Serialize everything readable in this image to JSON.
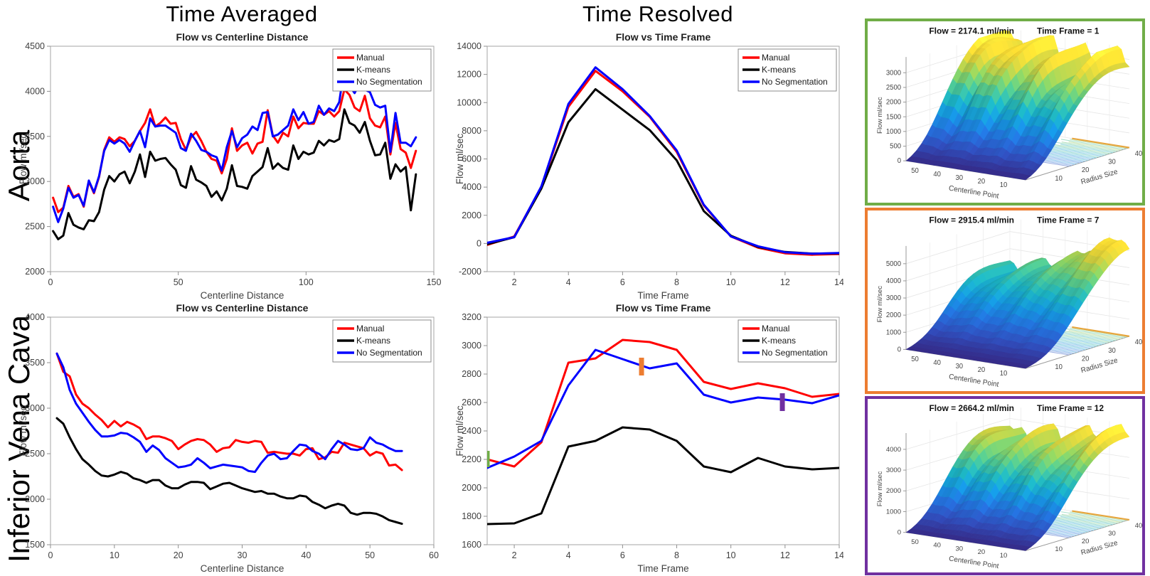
{
  "figure": {
    "background": "#ffffff"
  },
  "headers": {
    "left": "Time Averaged",
    "middle": "Time Resolved"
  },
  "row_labels": {
    "top": "Aorta",
    "bottom": "Inferior Vena Cava"
  },
  "colors": {
    "manual": "#ff0000",
    "kmeans": "#000000",
    "noseg": "#0000ff",
    "green_box": "#70AD47",
    "orange_box": "#ED7D31",
    "purple_box": "#7030A0",
    "axis_frame": "#a6a6a6",
    "tick_text": "#404040",
    "title_text": "#1f1f1f"
  },
  "legend_items": [
    {
      "label": "Manual",
      "color": "#ff0000"
    },
    {
      "label": "K-means",
      "color": "#000000"
    },
    {
      "label": "No Segmentation",
      "color": "#0000ff"
    }
  ],
  "chart_data": [
    {
      "id": "aorta_avg",
      "type": "line",
      "title": "Flow vs Centerline Distance",
      "xlabel": "Centerline Distance",
      "ylabel": "Flow ml/sec",
      "xlim": [
        0,
        150
      ],
      "ylim": [
        2000,
        4500
      ],
      "xticks": [
        0,
        50,
        100,
        150
      ],
      "yticks": [
        2000,
        2500,
        3000,
        3500,
        4000,
        4500
      ],
      "legend_position": "northeast",
      "grid": false,
      "x": [
        1,
        3,
        5,
        7,
        9,
        11,
        13,
        15,
        17,
        19,
        21,
        23,
        25,
        27,
        29,
        31,
        33,
        35,
        37,
        39,
        41,
        43,
        45,
        47,
        49,
        51,
        53,
        55,
        57,
        59,
        61,
        63,
        65,
        67,
        69,
        71,
        73,
        75,
        77,
        79,
        81,
        83,
        85,
        87,
        89,
        91,
        93,
        95,
        97,
        99,
        101,
        103,
        105,
        107,
        109,
        111,
        113,
        115,
        117,
        119,
        121,
        123,
        125,
        127,
        129,
        131,
        133,
        135,
        137,
        139,
        141,
        143
      ],
      "series": [
        {
          "name": "Manual",
          "color": "#ff0000",
          "y": [
            2820,
            2660,
            2710,
            2950,
            2830,
            2860,
            2720,
            3000,
            2870,
            3050,
            3350,
            3490,
            3440,
            3490,
            3470,
            3390,
            3450,
            3560,
            3650,
            3800,
            3610,
            3650,
            3710,
            3640,
            3650,
            3470,
            3350,
            3490,
            3550,
            3450,
            3330,
            3250,
            3230,
            3090,
            3250,
            3590,
            3340,
            3400,
            3430,
            3310,
            3420,
            3440,
            3790,
            3510,
            3430,
            3540,
            3500,
            3720,
            3590,
            3650,
            3640,
            3640,
            3780,
            3740,
            3780,
            3720,
            3780,
            4020,
            3960,
            3820,
            3780,
            3950,
            3700,
            3620,
            3600,
            3720,
            3300,
            3650,
            3360,
            3320,
            3150,
            3340
          ]
        },
        {
          "name": "K-means",
          "color": "#000000",
          "y": [
            2450,
            2360,
            2400,
            2650,
            2520,
            2490,
            2470,
            2570,
            2560,
            2660,
            2910,
            3060,
            3000,
            3080,
            3110,
            2980,
            3110,
            3300,
            3050,
            3330,
            3230,
            3250,
            3260,
            3190,
            3130,
            2960,
            2930,
            3170,
            3020,
            2990,
            2950,
            2830,
            2890,
            2790,
            2920,
            3180,
            2950,
            2940,
            2920,
            3060,
            3110,
            3160,
            3370,
            3140,
            3200,
            3150,
            3130,
            3400,
            3250,
            3330,
            3300,
            3320,
            3450,
            3400,
            3460,
            3440,
            3470,
            3800,
            3650,
            3620,
            3540,
            3660,
            3450,
            3290,
            3300,
            3430,
            3030,
            3190,
            3110,
            3160,
            2680,
            3080
          ]
        },
        {
          "name": "No Segmentation",
          "color": "#0000ff",
          "y": [
            2720,
            2550,
            2700,
            2930,
            2820,
            2850,
            2730,
            3010,
            2880,
            3060,
            3340,
            3460,
            3420,
            3460,
            3420,
            3330,
            3450,
            3560,
            3380,
            3700,
            3610,
            3620,
            3620,
            3580,
            3540,
            3370,
            3340,
            3530,
            3450,
            3350,
            3330,
            3290,
            3270,
            3120,
            3380,
            3560,
            3380,
            3480,
            3520,
            3610,
            3570,
            3760,
            3770,
            3500,
            3520,
            3570,
            3620,
            3800,
            3680,
            3770,
            3640,
            3660,
            3840,
            3740,
            3810,
            3780,
            3880,
            4270,
            4060,
            3980,
            4090,
            4020,
            3990,
            3850,
            3820,
            3840,
            3330,
            3760,
            3430,
            3430,
            3390,
            3490
          ]
        }
      ]
    },
    {
      "id": "aorta_time",
      "type": "line",
      "title": "Flow vs Time Frame",
      "xlabel": "Time Frame",
      "ylabel": "Flow ml/sec",
      "xlim": [
        1,
        14
      ],
      "ylim": [
        -2000,
        14000
      ],
      "xticks": [
        2,
        4,
        6,
        8,
        10,
        12,
        14
      ],
      "yticks": [
        -2000,
        0,
        2000,
        4000,
        6000,
        8000,
        10000,
        12000,
        14000
      ],
      "legend_position": "northeast",
      "grid": false,
      "x": [
        1,
        2,
        3,
        4,
        5,
        6,
        7,
        8,
        9,
        10,
        11,
        12,
        13,
        14
      ],
      "series": [
        {
          "name": "Manual",
          "color": "#ff0000",
          "y": [
            -100,
            500,
            4000,
            9700,
            12250,
            10800,
            9000,
            6500,
            2700,
            500,
            -300,
            -700,
            -800,
            -750
          ]
        },
        {
          "name": "K-means",
          "color": "#000000",
          "y": [
            -50,
            450,
            3900,
            8600,
            10950,
            9500,
            8050,
            5900,
            2300,
            550,
            -250,
            -600,
            -720,
            -700
          ]
        },
        {
          "name": "No Segmentation",
          "color": "#0000ff",
          "y": [
            50,
            450,
            4050,
            9900,
            12500,
            10950,
            9050,
            6600,
            2750,
            500,
            -200,
            -620,
            -730,
            -680
          ]
        }
      ]
    },
    {
      "id": "ivc_avg",
      "type": "line",
      "title": "Flow vs Centerline Distance",
      "xlabel": "Centerline Distance",
      "ylabel": "Flow ml/sec",
      "xlim": [
        0,
        60
      ],
      "ylim": [
        1500,
        4000
      ],
      "xticks": [
        0,
        10,
        20,
        30,
        40,
        50,
        60
      ],
      "yticks": [
        1500,
        2000,
        2500,
        3000,
        3500,
        4000
      ],
      "legend_position": "northeast",
      "grid": false,
      "x": [
        1,
        2,
        3,
        4,
        5,
        6,
        7,
        8,
        9,
        10,
        11,
        12,
        13,
        14,
        15,
        16,
        17,
        18,
        19,
        20,
        21,
        22,
        23,
        24,
        25,
        26,
        27,
        28,
        29,
        30,
        31,
        32,
        33,
        34,
        35,
        36,
        37,
        38,
        39,
        40,
        41,
        42,
        43,
        44,
        45,
        46,
        47,
        48,
        49,
        50,
        51,
        52,
        53,
        54,
        55
      ],
      "series": [
        {
          "name": "Manual",
          "color": "#ff0000",
          "y": [
            3600,
            3400,
            3350,
            3150,
            3050,
            3000,
            2930,
            2870,
            2790,
            2860,
            2800,
            2850,
            2820,
            2780,
            2660,
            2690,
            2690,
            2670,
            2640,
            2550,
            2600,
            2640,
            2660,
            2650,
            2600,
            2520,
            2560,
            2570,
            2650,
            2630,
            2620,
            2640,
            2630,
            2510,
            2520,
            2510,
            2500,
            2500,
            2480,
            2550,
            2560,
            2440,
            2460,
            2520,
            2510,
            2620,
            2600,
            2580,
            2560,
            2480,
            2520,
            2500,
            2370,
            2380,
            2320
          ]
        },
        {
          "name": "K-means",
          "color": "#000000",
          "y": [
            2890,
            2830,
            2680,
            2550,
            2440,
            2380,
            2310,
            2260,
            2250,
            2270,
            2300,
            2280,
            2230,
            2210,
            2180,
            2210,
            2210,
            2150,
            2120,
            2120,
            2160,
            2190,
            2190,
            2180,
            2110,
            2140,
            2170,
            2180,
            2150,
            2120,
            2100,
            2080,
            2090,
            2060,
            2060,
            2030,
            2010,
            2010,
            2040,
            2030,
            1970,
            1940,
            1900,
            1930,
            1950,
            1930,
            1850,
            1830,
            1850,
            1850,
            1840,
            1810,
            1770,
            1750,
            1730
          ]
        },
        {
          "name": "No Segmentation",
          "color": "#0000ff",
          "y": [
            3600,
            3450,
            3200,
            3050,
            2950,
            2850,
            2760,
            2690,
            2690,
            2700,
            2730,
            2720,
            2680,
            2630,
            2520,
            2590,
            2540,
            2450,
            2400,
            2350,
            2360,
            2380,
            2450,
            2400,
            2340,
            2360,
            2380,
            2370,
            2360,
            2350,
            2310,
            2300,
            2400,
            2480,
            2500,
            2440,
            2450,
            2530,
            2600,
            2590,
            2530,
            2500,
            2440,
            2550,
            2640,
            2600,
            2550,
            2540,
            2560,
            2680,
            2620,
            2600,
            2560,
            2530,
            2530
          ]
        }
      ]
    },
    {
      "id": "ivc_time",
      "type": "line",
      "title": "Flow vs Time Frame",
      "xlabel": "Time Frame",
      "ylabel": "Flow ml/sec",
      "xlim": [
        1,
        14
      ],
      "ylim": [
        1600,
        3200
      ],
      "xticks": [
        2,
        4,
        6,
        8,
        10,
        12,
        14
      ],
      "yticks": [
        1600,
        1800,
        2000,
        2200,
        2400,
        2600,
        2800,
        3000,
        3200
      ],
      "legend_position": "northeast",
      "grid": false,
      "x": [
        1,
        2,
        3,
        4,
        5,
        6,
        7,
        8,
        9,
        10,
        11,
        12,
        13,
        14
      ],
      "series": [
        {
          "name": "Manual",
          "color": "#ff0000",
          "y": [
            2200,
            2150,
            2320,
            2880,
            2910,
            3040,
            3025,
            2970,
            2745,
            2695,
            2735,
            2700,
            2640,
            2660
          ]
        },
        {
          "name": "K-means",
          "color": "#000000",
          "y": [
            1745,
            1750,
            1820,
            2290,
            2330,
            2425,
            2410,
            2330,
            2150,
            2110,
            2210,
            2150,
            2130,
            2140
          ]
        },
        {
          "name": "No Segmentation",
          "color": "#0000ff",
          "y": [
            2140,
            2220,
            2330,
            2720,
            2970,
            2905,
            2840,
            2875,
            2655,
            2600,
            2635,
            2620,
            2595,
            2650
          ]
        }
      ],
      "markers": [
        {
          "name": "time-frame-1-marker",
          "x": 1,
          "y1": 2145,
          "y2": 2260,
          "color": "#70AD47"
        },
        {
          "name": "time-frame-7-marker",
          "x": 6.7,
          "y1": 2790,
          "y2": 2915,
          "color": "#ED7D31"
        },
        {
          "name": "time-frame-12-marker",
          "x": 11.9,
          "y1": 2540,
          "y2": 2665,
          "color": "#7030A0"
        }
      ]
    },
    {
      "id": "surf1",
      "type": "surface3d",
      "border_color": "#70AD47",
      "title_flow": "Flow = 2174.1 ml/min",
      "title_frame": "Time Frame = 1",
      "zlabel": "Flow ml/sec",
      "xlabel3d": "Centerline Point",
      "ylabel3d": "Radius Size",
      "centerline_ticks": [
        50,
        40,
        30,
        20,
        10
      ],
      "radius_ticks": [
        10,
        20,
        30,
        40
      ],
      "zticks": [
        0,
        500,
        1000,
        1500,
        2000,
        2500,
        3000
      ],
      "zmax": 3400,
      "surface": {
        "base": 0.94,
        "v0": 0.33,
        "k": 8.0,
        "ridge": 0.2,
        "spike": 0.1,
        "back": 0.18,
        "ph": [
          1.3,
          3.1,
          0.7
        ]
      }
    },
    {
      "id": "surf2",
      "type": "surface3d",
      "border_color": "#ED7D31",
      "title_flow": "Flow = 2915.4 ml/min",
      "title_frame": "Time Frame = 7",
      "zlabel": "Flow ml/sec",
      "xlabel3d": "Centerline Point",
      "ylabel3d": "Radius Size",
      "centerline_ticks": [
        50,
        40,
        30,
        20,
        10
      ],
      "radius_ticks": [
        10,
        20,
        30,
        40
      ],
      "zticks": [
        0,
        1000,
        2000,
        3000,
        4000,
        5000
      ],
      "zmax": 5800,
      "surface": {
        "base": 0.6,
        "v0": 0.36,
        "k": 8.0,
        "ridge": 0.14,
        "spike": 0.46,
        "back": 0.05,
        "ph": [
          2.2,
          0.8,
          1.9
        ]
      }
    },
    {
      "id": "surf3",
      "type": "surface3d",
      "border_color": "#7030A0",
      "title_flow": "Flow = 2664.2 ml/min",
      "title_frame": "Time Frame = 12",
      "zlabel": "Flow ml/sec",
      "xlabel3d": "Centerline Point",
      "ylabel3d": "Radius Size",
      "centerline_ticks": [
        50,
        40,
        30,
        20,
        10
      ],
      "radius_ticks": [
        10,
        20,
        30,
        40
      ],
      "zticks": [
        0,
        1000,
        2000,
        3000,
        4000
      ],
      "zmax": 4600,
      "surface": {
        "base": 0.82,
        "v0": 0.34,
        "k": 8.0,
        "ridge": 0.18,
        "spike": 0.22,
        "back": 0.1,
        "ph": [
          0.6,
          2.5,
          1.2
        ]
      }
    }
  ]
}
